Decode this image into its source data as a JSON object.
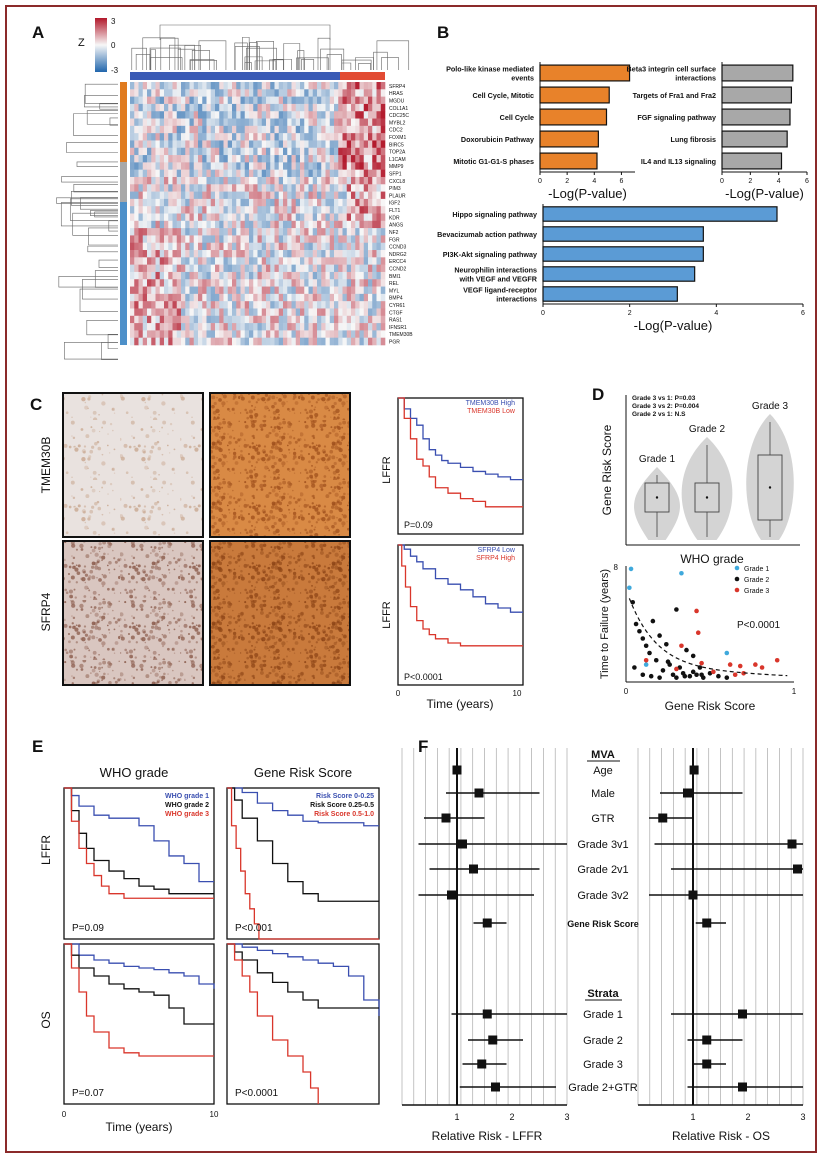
{
  "panel_letters": {
    "a": "A",
    "b": "B",
    "c": "C",
    "d": "D",
    "e": "E",
    "f": "F"
  },
  "heatmap": {
    "colorbar_title": "Z",
    "colorbar_ticks": [
      "3",
      "0",
      "-3"
    ],
    "genes": [
      "SFRP4",
      "HRAS",
      "MGDU",
      "COL1A1",
      "CDC25C",
      "MYBL2",
      "CDC2",
      "FOXM1",
      "BIRC5",
      "TOP2A",
      "L1CAM",
      "MMP9",
      "SFP1",
      "CXCL8",
      "PIM3",
      "PLAUR",
      "IGF2",
      "FLT1",
      "KDR",
      "ANGS",
      "NF2",
      "FGR",
      "CCND3",
      "NDRG2",
      "ERCC4",
      "CCND2",
      "BMI1",
      "REL",
      "MYL",
      "BMP4",
      "CYR61",
      "CTGF",
      "RAS1",
      "IFNSR1",
      "TMEM30B",
      "PGR"
    ],
    "colors": {
      "high": "#b2182b",
      "mid": "#f7f7f7",
      "low": "#2166ac",
      "bar_blue": "#3b5bb5",
      "bar_red": "#e24b33",
      "side_orange": "#e07b1f",
      "side_gray": "#a8a8a8",
      "side_blue": "#4d90c9"
    }
  },
  "chart_data": [
    {
      "type": "bar",
      "orientation": "horizontal",
      "panel": "B1",
      "categories": [
        "Polo-like kinase mediated events",
        "Cell Cycle, Mitotic",
        "Cell Cycle",
        "Doxorubicin Pathway",
        "Mitotic G1-G1-S phases"
      ],
      "values": [
        6.6,
        5.1,
        4.9,
        4.3,
        4.2
      ],
      "xlim": [
        0,
        7
      ],
      "xticks": [
        "0",
        "2",
        "4",
        "6"
      ],
      "xlabel": "-Log(P-value)",
      "color": "#e8822a"
    },
    {
      "type": "bar",
      "orientation": "horizontal",
      "panel": "B2",
      "categories": [
        "Beta3 integrin cell surface interactions",
        "Targets of Fra1 and Fra2",
        "FGF signaling pathway",
        "Lung fibrosis",
        "IL4 and IL13 signaling"
      ],
      "values": [
        5.0,
        4.9,
        4.8,
        4.6,
        4.2
      ],
      "xlim": [
        0,
        6
      ],
      "xticks": [
        "0",
        "2",
        "4",
        "6"
      ],
      "xlabel": "-Log(P-value)",
      "color": "#a8a8a8"
    },
    {
      "type": "bar",
      "orientation": "horizontal",
      "panel": "B3",
      "categories": [
        "Hippo signaling pathway",
        "Bevacizumab action pathway",
        "PI3K-Akt signaling pathway",
        "Neurophilin interactions with VEGF and VEGFR",
        "VEGF ligand-receptor interactions"
      ],
      "values": [
        5.4,
        3.7,
        3.7,
        3.5,
        3.1
      ],
      "xlim": [
        0,
        6
      ],
      "xticks": [
        "0",
        "2",
        "4",
        "6"
      ],
      "xlabel": "-Log(P-value)",
      "color": "#5b9bd5"
    },
    {
      "type": "line",
      "panel": "C-km-top",
      "ylabel": "LFFR",
      "legend": [
        "TMEM30B High",
        "TMEM30B Low"
      ],
      "pvalue": "P=0.09",
      "series": [
        {
          "name": "TMEM30B High",
          "color": "#3a4fb0",
          "x": [
            0,
            0.5,
            1,
            1.5,
            2,
            2.5,
            3,
            3.5,
            4,
            5,
            6,
            7,
            8,
            9,
            10
          ],
          "y": [
            1,
            0.92,
            0.85,
            0.8,
            0.7,
            0.62,
            0.58,
            0.54,
            0.52,
            0.49,
            0.46,
            0.44,
            0.42,
            0.4,
            0.4
          ]
        },
        {
          "name": "TMEM30B Low",
          "color": "#d9362b",
          "x": [
            0,
            0.5,
            1,
            1.5,
            2,
            2.5,
            3,
            4,
            5,
            6,
            7,
            8,
            9,
            10
          ],
          "y": [
            1,
            0.85,
            0.7,
            0.55,
            0.5,
            0.42,
            0.34,
            0.3,
            0.26,
            0.24,
            0.2,
            0.2,
            0.2,
            0.2
          ]
        }
      ]
    },
    {
      "type": "line",
      "panel": "C-km-bottom",
      "ylabel": "LFFR",
      "legend": [
        "SFRP4 Low",
        "SFRP4 High"
      ],
      "pvalue": "P<0.0001",
      "xlabel": "Time (years)",
      "xticks": [
        "0",
        "10"
      ],
      "series": [
        {
          "name": "SFRP4 Low",
          "color": "#3a4fb0",
          "x": [
            0,
            0.5,
            1,
            1.5,
            2,
            3,
            4,
            5,
            6,
            7,
            8,
            9,
            10
          ],
          "y": [
            1,
            0.97,
            0.92,
            0.88,
            0.83,
            0.76,
            0.72,
            0.68,
            0.63,
            0.58,
            0.55,
            0.52,
            0.52
          ]
        },
        {
          "name": "SFRP4 High",
          "color": "#d9362b",
          "x": [
            0,
            0.3,
            0.6,
            1,
            1.5,
            2,
            2.5,
            3,
            4,
            5,
            6,
            7,
            8,
            9,
            10
          ],
          "y": [
            1,
            0.85,
            0.7,
            0.56,
            0.46,
            0.4,
            0.36,
            0.33,
            0.3,
            0.28,
            0.28,
            0.28,
            0.28,
            0.28,
            0.28
          ]
        }
      ]
    },
    {
      "type": "violin",
      "panel": "D-top",
      "ylabel": "Gene Risk Score",
      "xlabel": "WHO grade",
      "categories": [
        "Grade 1",
        "Grade 2",
        "Grade 3"
      ],
      "annotations": [
        "Grade 3 vs 1: P=0.03",
        "Grade 3 vs 2: P=0.004",
        "Grade 2 vs 1: N.S"
      ]
    },
    {
      "type": "scatter",
      "panel": "D-bottom",
      "ylabel": "Time to Failure (years)",
      "xlabel": "Gene Risk Score",
      "xlim": [
        0,
        1
      ],
      "ylim": [
        0,
        8
      ],
      "xticks": [
        "0",
        "1"
      ],
      "yticks": [
        "8"
      ],
      "pvalue": "P<0.0001",
      "series": [
        {
          "name": "Grade 1",
          "color": "#3fa9dc",
          "x": [
            0.03,
            0.33,
            0.02,
            0.12,
            0.6
          ],
          "y": [
            7.8,
            7.5,
            6.5,
            1.2,
            2.0
          ]
        },
        {
          "name": "Grade 2",
          "color": "#111111",
          "x": [
            0.04,
            0.06,
            0.08,
            0.1,
            0.12,
            0.14,
            0.16,
            0.18,
            0.2,
            0.22,
            0.24,
            0.26,
            0.28,
            0.3,
            0.32,
            0.34,
            0.36,
            0.38,
            0.4,
            0.42,
            0.44,
            0.46,
            0.5,
            0.05,
            0.1,
            0.15,
            0.2,
            0.25,
            0.3,
            0.35,
            0.4,
            0.45,
            0.55,
            0.6
          ],
          "y": [
            5.5,
            4.0,
            3.5,
            3.0,
            2.5,
            2.0,
            4.2,
            1.5,
            3.2,
            0.8,
            2.6,
            1.2,
            0.5,
            5.0,
            1.0,
            0.6,
            2.2,
            0.4,
            1.8,
            0.5,
            1.0,
            0.3,
            0.6,
            1.0,
            0.5,
            0.4,
            0.3,
            1.4,
            0.3,
            0.4,
            0.7,
            0.5,
            0.4,
            0.3
          ]
        },
        {
          "name": "Grade 3",
          "color": "#d9362b",
          "x": [
            0.42,
            0.43,
            0.33,
            0.12,
            0.3,
            0.62,
            0.68,
            0.9,
            0.45,
            0.52,
            0.65,
            0.7,
            0.77,
            0.81
          ],
          "y": [
            4.9,
            3.4,
            2.5,
            1.5,
            0.9,
            1.2,
            1.1,
            1.5,
            1.3,
            0.7,
            0.5,
            0.6,
            1.2,
            1.0
          ]
        }
      ]
    },
    {
      "type": "line",
      "panel": "E",
      "title_left": "WHO grade",
      "title_right": "Gene Risk Score",
      "row_labels": [
        "LFFR",
        "OS"
      ],
      "xlabel": "Time (years)",
      "xticks": [
        "0",
        "10"
      ],
      "legend_left": [
        "WHO grade 1",
        "WHO grade 2",
        "WHO grade 3"
      ],
      "legend_right": [
        "Risk Score 0-0.25",
        "Risk Score 0.25-0.5",
        "Risk Score 0.5-1.0"
      ],
      "pvalues": [
        "P=0.09",
        "P<0.001",
        "P=0.07",
        "P<0.0001"
      ]
    },
    {
      "type": "forest",
      "panel": "F",
      "section_titles": [
        "MVA",
        "Strata"
      ],
      "rows": [
        "Age",
        "Male",
        "GTR",
        "Grade 3v1",
        "Grade 2v1",
        "Grade 3v2",
        "Gene Risk Score",
        "Grade 1",
        "Grade 2",
        "Grade 3",
        "Grade 2+GTR"
      ],
      "xlabel_left": "Relative Risk - LFFR",
      "xlabel_right": "Relative Risk - OS",
      "xticks": [
        "1",
        "2",
        "3"
      ],
      "lffr": [
        [
          1.0,
          0.98,
          1.02
        ],
        [
          1.4,
          0.8,
          2.5
        ],
        [
          0.8,
          0.4,
          1.5
        ],
        [
          1.1,
          0.3,
          3.0
        ],
        [
          1.3,
          0.5,
          2.5
        ],
        [
          0.9,
          0.3,
          2.4
        ],
        [
          1.55,
          1.3,
          1.9
        ],
        [
          1.55,
          0.9,
          3.0
        ],
        [
          1.65,
          1.2,
          2.2
        ],
        [
          1.45,
          1.1,
          1.9
        ],
        [
          1.7,
          1.05,
          2.8
        ]
      ],
      "os": [
        [
          1.02,
          1.0,
          1.05
        ],
        [
          0.9,
          0.4,
          1.9
        ],
        [
          0.45,
          0.2,
          1.0
        ],
        [
          2.8,
          0.3,
          3.0
        ],
        [
          2.9,
          0.6,
          3.0
        ],
        [
          1.0,
          0.2,
          3.0
        ],
        [
          1.25,
          1.05,
          1.6
        ],
        [
          1.9,
          0.6,
          3.0
        ],
        [
          1.25,
          0.9,
          1.9
        ],
        [
          1.25,
          1.0,
          1.6
        ],
        [
          1.9,
          0.9,
          3.0
        ]
      ]
    }
  ]
}
